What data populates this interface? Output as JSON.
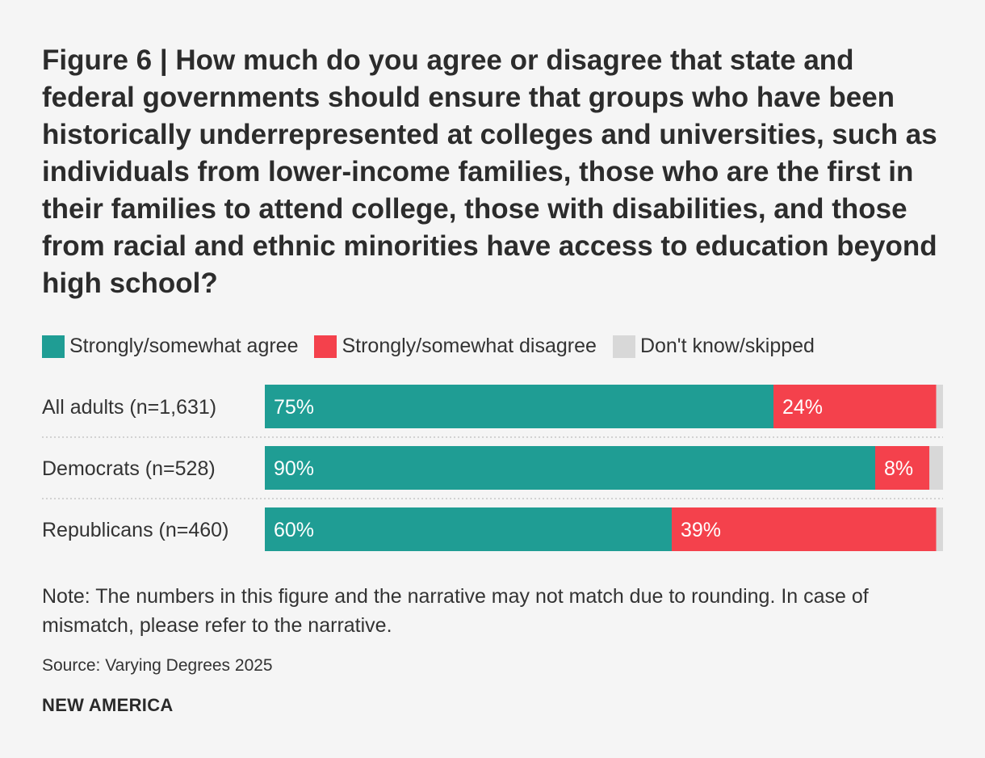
{
  "colors": {
    "agree": "#1f9d94",
    "disagree": "#f4414c",
    "dontknow": "#d8d8d8",
    "background": "#f5f5f5"
  },
  "chart_data": {
    "type": "bar",
    "orientation": "horizontal",
    "stacked": true,
    "title": "Figure 6 | How much do you agree or disagree that state and federal governments should ensure that groups who have been historically underrepresented at colleges and universities, such as individuals from lower-income families, those who are the first in their families to attend college, those with disabilities, and those from racial and ethnic minorities have access to education beyond high school?",
    "categories": [
      "All adults (n=1,631)",
      "Democrats (n=528)",
      "Republicans (n=460)"
    ],
    "series": [
      {
        "name": "Strongly/somewhat agree",
        "values": [
          75,
          90,
          60
        ],
        "labels": [
          "75%",
          "90%",
          "60%"
        ]
      },
      {
        "name": "Strongly/somewhat disagree",
        "values": [
          24,
          8,
          39
        ],
        "labels": [
          "24%",
          "8%",
          "39%"
        ]
      },
      {
        "name": "Don't know/skipped",
        "values": [
          1,
          2,
          1
        ],
        "labels": [
          "",
          "",
          ""
        ]
      }
    ],
    "xlim": [
      0,
      100
    ],
    "legend_position": "top-left",
    "grid": false
  },
  "note": "Note: The numbers in this figure and the narrative may not match due to rounding. In case of mismatch, please refer to the narrative.",
  "source": "Source: Varying Degrees 2025",
  "brand": "NEW AMERICA"
}
